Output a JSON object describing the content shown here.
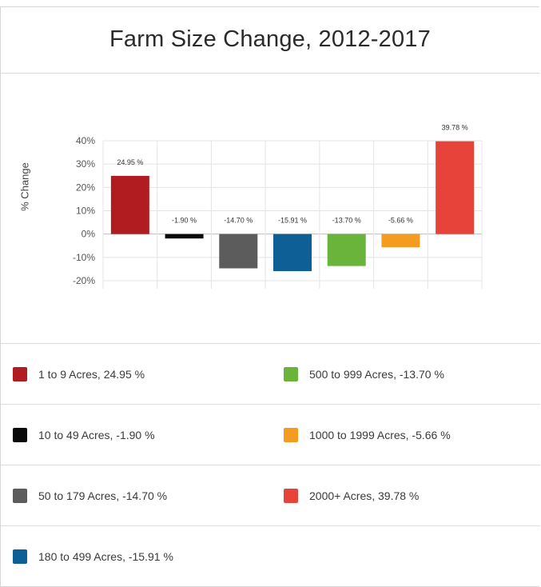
{
  "title": "Farm Size Change, 2012-2017",
  "chart_data": {
    "type": "bar",
    "title": "Farm Size Change, 2012-2017",
    "xlabel": "",
    "ylabel": "% Change",
    "ylim": [
      -20,
      40
    ],
    "yticks": [
      "40%",
      "30%",
      "20%",
      "10%",
      "0%",
      "-10%",
      "-20%"
    ],
    "ytick_values": [
      40,
      30,
      20,
      10,
      0,
      -10,
      -20
    ],
    "grid": true,
    "legend_position": "bottom",
    "categories": [
      "1 to 9 Acres",
      "10 to 49 Acres",
      "50 to 179 Acres",
      "180 to 499 Acres",
      "500 to 999 Acres",
      "1000 to 1999 Acres",
      "2000+ Acres"
    ],
    "values": [
      24.95,
      -1.9,
      -14.7,
      -15.91,
      -13.7,
      -5.66,
      39.78
    ],
    "data_labels": [
      "24.95 %",
      "-1.90 %",
      "-14.70 %",
      "-15.91 %",
      "-13.70 %",
      "-5.66 %",
      "39.78 %"
    ],
    "colors": [
      "#b01c20",
      "#0a0a0a",
      "#5c5c5c",
      "#0e5f96",
      "#6ab43c",
      "#f39c1f",
      "#e8433a"
    ]
  },
  "legend": [
    {
      "label": "1 to 9 Acres, 24.95 %",
      "color": "#b01c20"
    },
    {
      "label": "10 to 49 Acres, -1.90 %",
      "color": "#0a0a0a"
    },
    {
      "label": "50 to 179 Acres, -14.70 %",
      "color": "#5c5c5c"
    },
    {
      "label": "180 to 499 Acres, -15.91 %",
      "color": "#0e5f96"
    },
    {
      "label": "500 to 999 Acres, -13.70 %",
      "color": "#6ab43c"
    },
    {
      "label": "1000 to 1999 Acres, -5.66 %",
      "color": "#f39c1f"
    },
    {
      "label": "2000+ Acres, 39.78 %",
      "color": "#e8433a"
    }
  ]
}
